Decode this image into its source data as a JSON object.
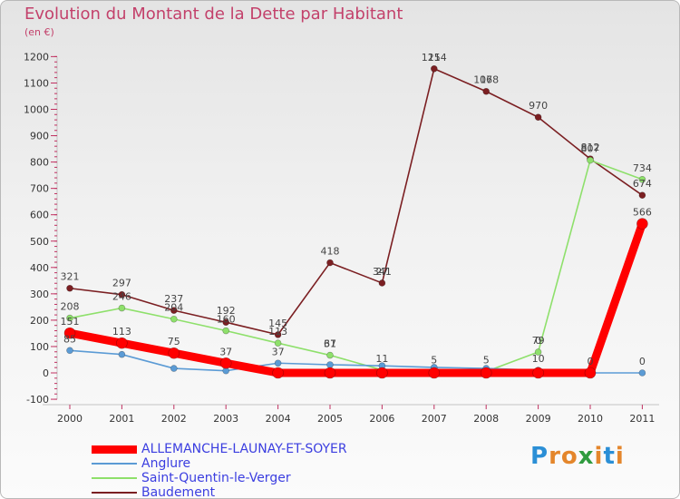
{
  "title": "Evolution du Montant de la Dette par Habitant",
  "subtitle": "(en €)",
  "logo": {
    "letters": [
      "P",
      "r",
      "o",
      "x",
      "i",
      "t",
      "i"
    ],
    "colors": [
      "#2b8fd6",
      "#e4862b",
      "#e4862b",
      "#2f9b3f",
      "#e4862b",
      "#2b8fd6",
      "#e4862b"
    ]
  },
  "chart_data": {
    "type": "line",
    "x": [
      "2000",
      "2001",
      "2002",
      "2003",
      "2004",
      "2005",
      "2006",
      "2007",
      "2008",
      "2009",
      "2010",
      "2011"
    ],
    "ylim": [
      -100,
      1200
    ],
    "yticks": [
      "-100",
      "0",
      "100",
      "200",
      "300",
      "400",
      "500",
      "600",
      "700",
      "800",
      "900",
      "1000",
      "1100",
      "1200"
    ],
    "grid": false,
    "legend_placement": "bottom-left",
    "series": [
      {
        "name": "ALLEMANCHE-LAUNAY-ET-SOYER",
        "color": "#ff0000",
        "values": [
          151,
          113,
          75,
          37,
          0,
          0,
          0,
          0,
          0,
          0,
          0,
          566
        ],
        "data_labels": [
          "151",
          "113",
          "75",
          "37",
          "",
          "",
          "",
          "",
          "",
          "",
          "",
          "566"
        ]
      },
      {
        "name": "Anglure",
        "color": "#5b9bd5",
        "values": [
          85,
          70,
          17,
          8,
          37,
          31,
          27,
          21,
          17,
          10,
          0,
          0
        ],
        "data_labels": [
          "85",
          "",
          "",
          "",
          "",
          "",
          "",
          "",
          "",
          "",
          "0",
          "0"
        ]
      },
      {
        "name": "Saint-Quentin-le-Verger",
        "color": "#8ee06b",
        "values": [
          208,
          246,
          204,
          160,
          113,
          67,
          11,
          5,
          5,
          79,
          807,
          734
        ],
        "data_labels": [
          "208",
          "246",
          "204",
          "160",
          "113",
          "67",
          "",
          "",
          "",
          "79",
          "807",
          "734"
        ]
      },
      {
        "name": "Baudement",
        "color": "#7b1f22",
        "values": [
          321,
          297,
          237,
          192,
          145,
          418,
          341,
          1154,
          1068,
          970,
          812,
          674
        ],
        "data_labels": [
          "321",
          "297",
          "237",
          "192",
          "145",
          "418",
          "341",
          "1154",
          "1068",
          "970",
          "812",
          "674"
        ]
      }
    ],
    "overlap_labels": [
      {
        "series": "Anglure",
        "x": "2004",
        "text": "37"
      },
      {
        "series": "Saint-Quentin-le-Verger",
        "x": "2005",
        "text": "31"
      },
      {
        "series": "Baudement",
        "x": "2006",
        "text": "27"
      },
      {
        "series": "Saint-Quentin-le-Verger",
        "x": "2006",
        "text": "11"
      },
      {
        "series": "Baudement",
        "x": "2007",
        "text": "21"
      },
      {
        "series": "Saint-Quentin-le-Verger",
        "x": "2007",
        "text": "5"
      },
      {
        "series": "Baudement",
        "x": "2008",
        "text": "17"
      },
      {
        "series": "Saint-Quentin-le-Verger",
        "x": "2008",
        "text": "5"
      },
      {
        "series": "Anglure",
        "x": "2009",
        "text": "10"
      },
      {
        "series": "Saint-Quentin-le-Verger",
        "x": "2009",
        "text": "0"
      }
    ]
  }
}
